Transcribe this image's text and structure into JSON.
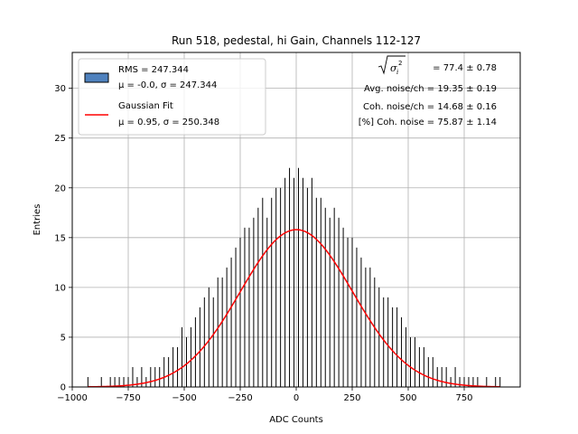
{
  "chart_data": {
    "type": "bar",
    "title": "Run 518, pedestal, hi Gain, Channels 112-127",
    "xlabel": "ADC Counts",
    "ylabel": "Entries",
    "xlim": [
      -1000,
      1000
    ],
    "ylim": [
      0,
      33.6
    ],
    "xticks": [
      -1000,
      -750,
      -500,
      -250,
      0,
      250,
      500,
      750
    ],
    "xtick_labels": [
      "−1000",
      "−750",
      "−500",
      "−250",
      "0",
      "250",
      "500",
      "750"
    ],
    "yticks": [
      0,
      5,
      10,
      15,
      20,
      25,
      30
    ],
    "ytick_labels": [
      "0",
      "5",
      "10",
      "15",
      "20",
      "25",
      "30"
    ],
    "grid": true,
    "legend_location": "top-left",
    "series": [
      {
        "name": "RMS = 247.344",
        "legend_line2": "μ = -0.0, σ = 247.344",
        "kind": "histogram",
        "bin_width": 4,
        "bins": [
          [
            -930,
            1
          ],
          [
            -870,
            1
          ],
          [
            -830,
            1
          ],
          [
            -810,
            1
          ],
          [
            -790,
            1
          ],
          [
            -770,
            1
          ],
          [
            -750,
            1
          ],
          [
            -730,
            2
          ],
          [
            -710,
            1
          ],
          [
            -690,
            2
          ],
          [
            -670,
            1
          ],
          [
            -650,
            2
          ],
          [
            -630,
            2
          ],
          [
            -610,
            2
          ],
          [
            -590,
            3
          ],
          [
            -570,
            3
          ],
          [
            -550,
            4
          ],
          [
            -530,
            4
          ],
          [
            -510,
            6
          ],
          [
            -490,
            5
          ],
          [
            -470,
            6
          ],
          [
            -450,
            7
          ],
          [
            -430,
            8
          ],
          [
            -410,
            9
          ],
          [
            -390,
            10
          ],
          [
            -370,
            9
          ],
          [
            -350,
            11
          ],
          [
            -330,
            11
          ],
          [
            -310,
            12
          ],
          [
            -290,
            13
          ],
          [
            -270,
            14
          ],
          [
            -250,
            15
          ],
          [
            -230,
            16
          ],
          [
            -210,
            16
          ],
          [
            -190,
            17
          ],
          [
            -170,
            18
          ],
          [
            -150,
            19
          ],
          [
            -130,
            17
          ],
          [
            -110,
            19
          ],
          [
            -90,
            20
          ],
          [
            -70,
            20
          ],
          [
            -50,
            21
          ],
          [
            -30,
            22
          ],
          [
            -10,
            21
          ],
          [
            10,
            22
          ],
          [
            30,
            21
          ],
          [
            50,
            20
          ],
          [
            70,
            21
          ],
          [
            90,
            19
          ],
          [
            110,
            19
          ],
          [
            130,
            18
          ],
          [
            150,
            17
          ],
          [
            170,
            18
          ],
          [
            190,
            17
          ],
          [
            210,
            16
          ],
          [
            230,
            15
          ],
          [
            250,
            15
          ],
          [
            270,
            14
          ],
          [
            290,
            13
          ],
          [
            310,
            12
          ],
          [
            330,
            12
          ],
          [
            350,
            11
          ],
          [
            370,
            10
          ],
          [
            390,
            9
          ],
          [
            410,
            9
          ],
          [
            430,
            8
          ],
          [
            450,
            8
          ],
          [
            470,
            7
          ],
          [
            490,
            6
          ],
          [
            510,
            5
          ],
          [
            530,
            5
          ],
          [
            550,
            4
          ],
          [
            570,
            4
          ],
          [
            590,
            3
          ],
          [
            610,
            3
          ],
          [
            630,
            2
          ],
          [
            650,
            2
          ],
          [
            670,
            2
          ],
          [
            690,
            1
          ],
          [
            710,
            2
          ],
          [
            730,
            1
          ],
          [
            750,
            1
          ],
          [
            770,
            1
          ],
          [
            790,
            1
          ],
          [
            810,
            1
          ],
          [
            850,
            1
          ],
          [
            890,
            1
          ],
          [
            910,
            1
          ]
        ],
        "fill": "#000000",
        "legend_swatch": "#4f81bd"
      },
      {
        "name": "Gaussian Fit",
        "legend_line2": "μ = 0.95, σ = 250.348",
        "kind": "line",
        "mu": 0.95,
        "sigma": 250.348,
        "amplitude": 15.8,
        "x_range": [
          -930,
          910
        ],
        "color": "#ff0000"
      }
    ],
    "annotations": {
      "sigma_total": "= 77.4 ± 0.78",
      "avg_noise": "Avg. noise/ch = 19.35 ± 0.19",
      "coh_noise": "Coh. noise/ch = 14.68 ± 0.16",
      "pct_coh_noise": "[%] Coh. noise = 75.87 ± 1.14"
    }
  }
}
